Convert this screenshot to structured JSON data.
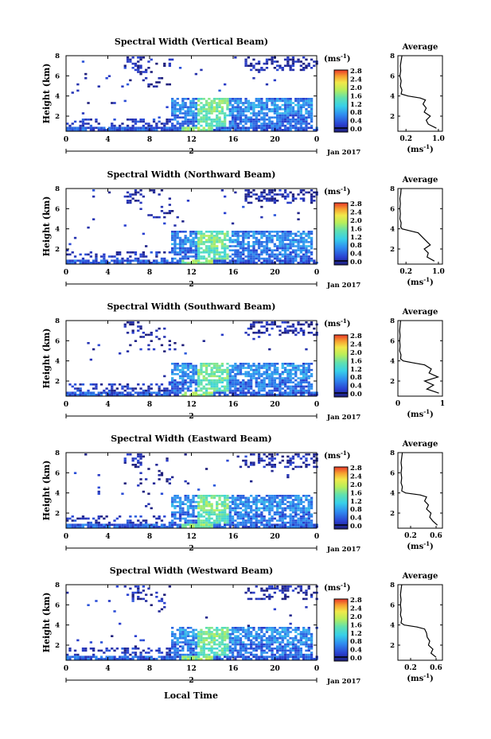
{
  "figure": {
    "xlabel": "Local Time",
    "date_label": "Jan 2017",
    "colorbar_units": "(ms",
    "colorbar_units_exp": "-1",
    "colorbar_units_close": ")"
  },
  "chart_data": [
    {
      "type": "heatmap",
      "title": "Spectral Width (Vertical Beam)",
      "ylabel": "Height (km)",
      "xlabel": "Local Time",
      "x_ticks": [
        "0",
        "4",
        "8",
        "12",
        "16",
        "20",
        "0"
      ],
      "x_day_marker": "2",
      "date_label": "Jan 2017",
      "xlim": [
        0,
        24
      ],
      "y_ticks": [
        "2",
        "4",
        "6",
        "8"
      ],
      "ylim": [
        0.5,
        8
      ],
      "colorbar": {
        "ticks": [
          "0.0",
          "0.4",
          "0.8",
          "1.2",
          "1.6",
          "2.0",
          "2.4",
          "2.8"
        ],
        "range": [
          0,
          3.0
        ]
      },
      "average_profile": {
        "title": "Average",
        "x_ticks": [
          "0.2",
          "1.0"
        ],
        "xlim": [
          0,
          1.1
        ],
        "xlabel": "(ms",
        "xlabel_exp": "-1",
        "heights": [
          0.8,
          1.2,
          1.6,
          2.0,
          2.4,
          2.8,
          3.2,
          3.6,
          3.8,
          4.0,
          4.2,
          4.6,
          5.0,
          5.5,
          6.0,
          6.5,
          7.0,
          7.5,
          8.0
        ],
        "values": [
          0.95,
          0.75,
          0.7,
          0.8,
          0.65,
          0.7,
          0.62,
          0.68,
          0.55,
          0.25,
          0.08,
          0.1,
          0.06,
          0.08,
          0.05,
          0.07,
          0.06,
          0.08,
          0.1
        ]
      }
    },
    {
      "type": "heatmap",
      "title": "Spectral Width (Northward Beam)",
      "ylabel": "Height (km)",
      "xlabel": "Local Time",
      "x_ticks": [
        "0",
        "4",
        "8",
        "12",
        "16",
        "20",
        "0"
      ],
      "x_day_marker": "2",
      "date_label": "Jan 2017",
      "xlim": [
        0,
        24
      ],
      "y_ticks": [
        "2",
        "4",
        "6",
        "8"
      ],
      "ylim": [
        0.5,
        8
      ],
      "colorbar": {
        "ticks": [
          "0.0",
          "0.4",
          "0.8",
          "1.2",
          "1.6",
          "2.0",
          "2.4",
          "2.8"
        ],
        "range": [
          0,
          3.0
        ]
      },
      "average_profile": {
        "title": "Average",
        "x_ticks": [
          "0.2",
          "1.0"
        ],
        "xlim": [
          0,
          1.1
        ],
        "xlabel": "(ms",
        "xlabel_exp": "-1",
        "heights": [
          0.8,
          1.2,
          1.6,
          2.0,
          2.4,
          2.8,
          3.2,
          3.6,
          3.8,
          4.0,
          4.2,
          4.6,
          5.0,
          5.5,
          6.0,
          6.5,
          7.0,
          7.5,
          8.0
        ],
        "values": [
          0.9,
          0.72,
          0.75,
          0.65,
          0.8,
          0.7,
          0.6,
          0.5,
          0.3,
          0.1,
          0.07,
          0.08,
          0.05,
          0.06,
          0.05,
          0.06,
          0.05,
          0.07,
          0.08
        ]
      }
    },
    {
      "type": "heatmap",
      "title": "Spectral Width (Southward Beam)",
      "ylabel": "Height (km)",
      "xlabel": "Local Time",
      "x_ticks": [
        "0",
        "4",
        "8",
        "12",
        "16",
        "20",
        "0"
      ],
      "x_day_marker": "2",
      "date_label": "Jan 2017",
      "xlim": [
        0,
        24
      ],
      "y_ticks": [
        "2",
        "4",
        "6",
        "8"
      ],
      "ylim": [
        0.5,
        8
      ],
      "colorbar": {
        "ticks": [
          "0.0",
          "0.4",
          "0.8",
          "1.2",
          "1.6",
          "2.0",
          "2.4",
          "2.8"
        ],
        "range": [
          0,
          3.0
        ]
      },
      "average_profile": {
        "title": "Average",
        "x_ticks": [
          "0",
          "1"
        ],
        "xlim": [
          0,
          1
        ],
        "xlabel": "(ms",
        "xlabel_exp": "-1",
        "heights": [
          0.8,
          1.2,
          1.6,
          2.0,
          2.4,
          2.8,
          3.2,
          3.6,
          3.8,
          4.0,
          4.2,
          4.6,
          5.0,
          5.5,
          6.0,
          6.5,
          7.0,
          7.5,
          8.0
        ],
        "values": [
          0.92,
          0.65,
          0.8,
          0.6,
          0.9,
          0.7,
          0.75,
          0.6,
          0.35,
          0.12,
          0.06,
          0.07,
          0.04,
          0.05,
          0.04,
          0.05,
          0.04,
          0.05,
          0.06
        ]
      }
    },
    {
      "type": "heatmap",
      "title": "Spectral Width (Eastward Beam)",
      "ylabel": "Height (km)",
      "xlabel": "Local Time",
      "x_ticks": [
        "0",
        "4",
        "8",
        "12",
        "16",
        "20",
        "0"
      ],
      "x_day_marker": "2",
      "date_label": "Jan 2017",
      "xlim": [
        0,
        24
      ],
      "y_ticks": [
        "2",
        "4",
        "6",
        "8"
      ],
      "ylim": [
        0.5,
        8
      ],
      "colorbar": {
        "ticks": [
          "0.0",
          "0.4",
          "0.8",
          "1.2",
          "1.6",
          "2.0",
          "2.4",
          "2.8"
        ],
        "range": [
          0,
          3.0
        ]
      },
      "average_profile": {
        "title": "Average",
        "x_ticks": [
          "0.2",
          "0.6"
        ],
        "xlim": [
          0,
          0.7
        ],
        "xlabel": "(ms",
        "xlabel_exp": "-1",
        "heights": [
          0.8,
          1.2,
          1.6,
          2.0,
          2.4,
          2.8,
          3.2,
          3.6,
          3.8,
          4.0,
          4.2,
          4.6,
          5.0,
          5.5,
          6.0,
          6.5,
          7.0,
          7.5,
          8.0
        ],
        "values": [
          0.62,
          0.55,
          0.5,
          0.52,
          0.45,
          0.48,
          0.42,
          0.45,
          0.35,
          0.12,
          0.06,
          0.07,
          0.05,
          0.06,
          0.05,
          0.06,
          0.05,
          0.06,
          0.07
        ]
      }
    },
    {
      "type": "heatmap",
      "title": "Spectral Width (Westward Beam)",
      "ylabel": "Height (km)",
      "xlabel": "Local Time",
      "x_ticks": [
        "0",
        "4",
        "8",
        "12",
        "16",
        "20",
        "0"
      ],
      "x_day_marker": "2",
      "date_label": "Jan 2017",
      "xlim": [
        0,
        24
      ],
      "y_ticks": [
        "2",
        "4",
        "6",
        "8"
      ],
      "ylim": [
        0.5,
        8
      ],
      "colorbar": {
        "ticks": [
          "0.0",
          "0.4",
          "0.8",
          "1.2",
          "1.6",
          "2.0",
          "2.4",
          "2.8"
        ],
        "range": [
          0,
          3.0
        ]
      },
      "average_profile": {
        "title": "Average",
        "x_ticks": [
          "0.2",
          "0.6"
        ],
        "xlim": [
          0,
          0.7
        ],
        "xlabel": "(ms",
        "xlabel_exp": "-1",
        "heights": [
          0.8,
          1.2,
          1.6,
          2.0,
          2.4,
          2.8,
          3.2,
          3.6,
          3.8,
          4.0,
          4.2,
          4.6,
          5.0,
          5.5,
          6.0,
          6.5,
          7.0,
          7.5,
          8.0
        ],
        "values": [
          0.6,
          0.52,
          0.55,
          0.48,
          0.5,
          0.46,
          0.45,
          0.42,
          0.3,
          0.1,
          0.05,
          0.06,
          0.04,
          0.05,
          0.04,
          0.05,
          0.04,
          0.05,
          0.06
        ]
      }
    }
  ]
}
